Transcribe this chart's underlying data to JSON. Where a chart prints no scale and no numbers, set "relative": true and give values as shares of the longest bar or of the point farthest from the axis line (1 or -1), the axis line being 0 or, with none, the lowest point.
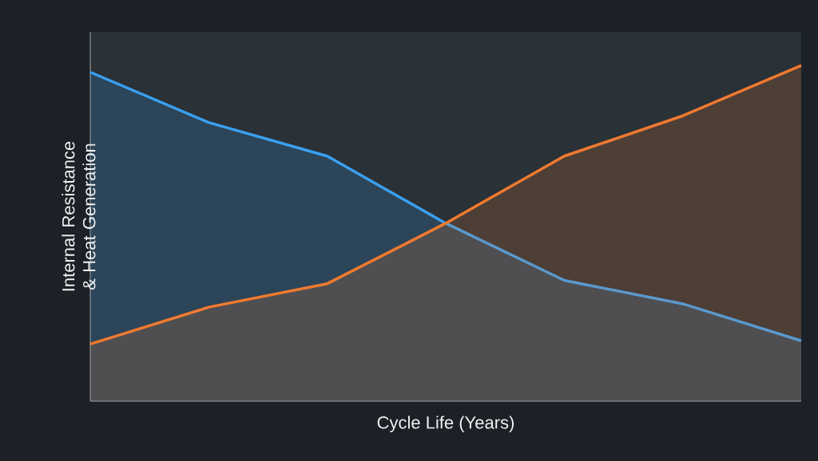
{
  "chart_data": {
    "type": "area",
    "relative": true,
    "xlabel": "Cycle Life (Years)",
    "ylabel": "Internal Resistance & Heat Generation",
    "categories": [
      null,
      null,
      null,
      null,
      null,
      null,
      null
    ],
    "series": [
      {
        "color": "#3aa0f0",
        "values": [
          0.98,
          0.83,
          0.73,
          0.53,
          0.36,
          0.29,
          0.18
        ]
      },
      {
        "color": "#f07a30",
        "values": [
          0.17,
          0.28,
          0.35,
          0.53,
          0.73,
          0.85,
          1
        ]
      }
    ]
  }
}
